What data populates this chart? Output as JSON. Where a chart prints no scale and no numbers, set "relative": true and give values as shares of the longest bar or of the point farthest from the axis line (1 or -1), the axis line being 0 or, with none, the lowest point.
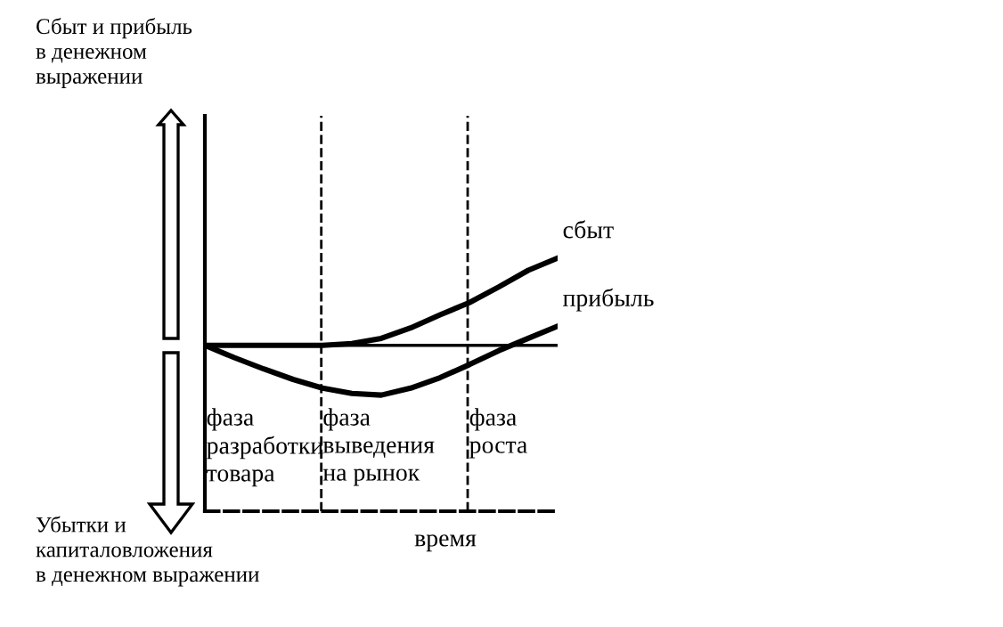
{
  "chart_data": {
    "type": "line",
    "relative": true,
    "categories": [
      null,
      null,
      null,
      null,
      null,
      null,
      null,
      null,
      null,
      null,
      null,
      null,
      null
    ],
    "series": [
      {
        "name": "сбыт",
        "color": "#000000",
        "values": [
          0,
          0,
          0,
          0,
          0,
          0.02,
          0.08,
          0.2,
          0.35,
          0.49,
          0.67,
          0.86,
          1
        ]
      },
      {
        "name": "прибыль",
        "color": "#000000",
        "values": [
          0,
          -0.14,
          -0.27,
          -0.39,
          -0.49,
          -0.55,
          -0.57,
          -0.49,
          -0.37,
          -0.22,
          -0.06,
          0.08,
          0.22
        ]
      }
    ],
    "annotations": [
      "фаза\nразработки\nтовара",
      "фаза\nвыведения\nна рынок",
      "фаза\nроста",
      "Сбыт и прибыль\nв денежном\nвыражении",
      "Убытки и\nкапиталовложения\nв денежном выражении",
      "время"
    ],
    "legend": false,
    "marker": "none",
    "line_style": "solid"
  }
}
